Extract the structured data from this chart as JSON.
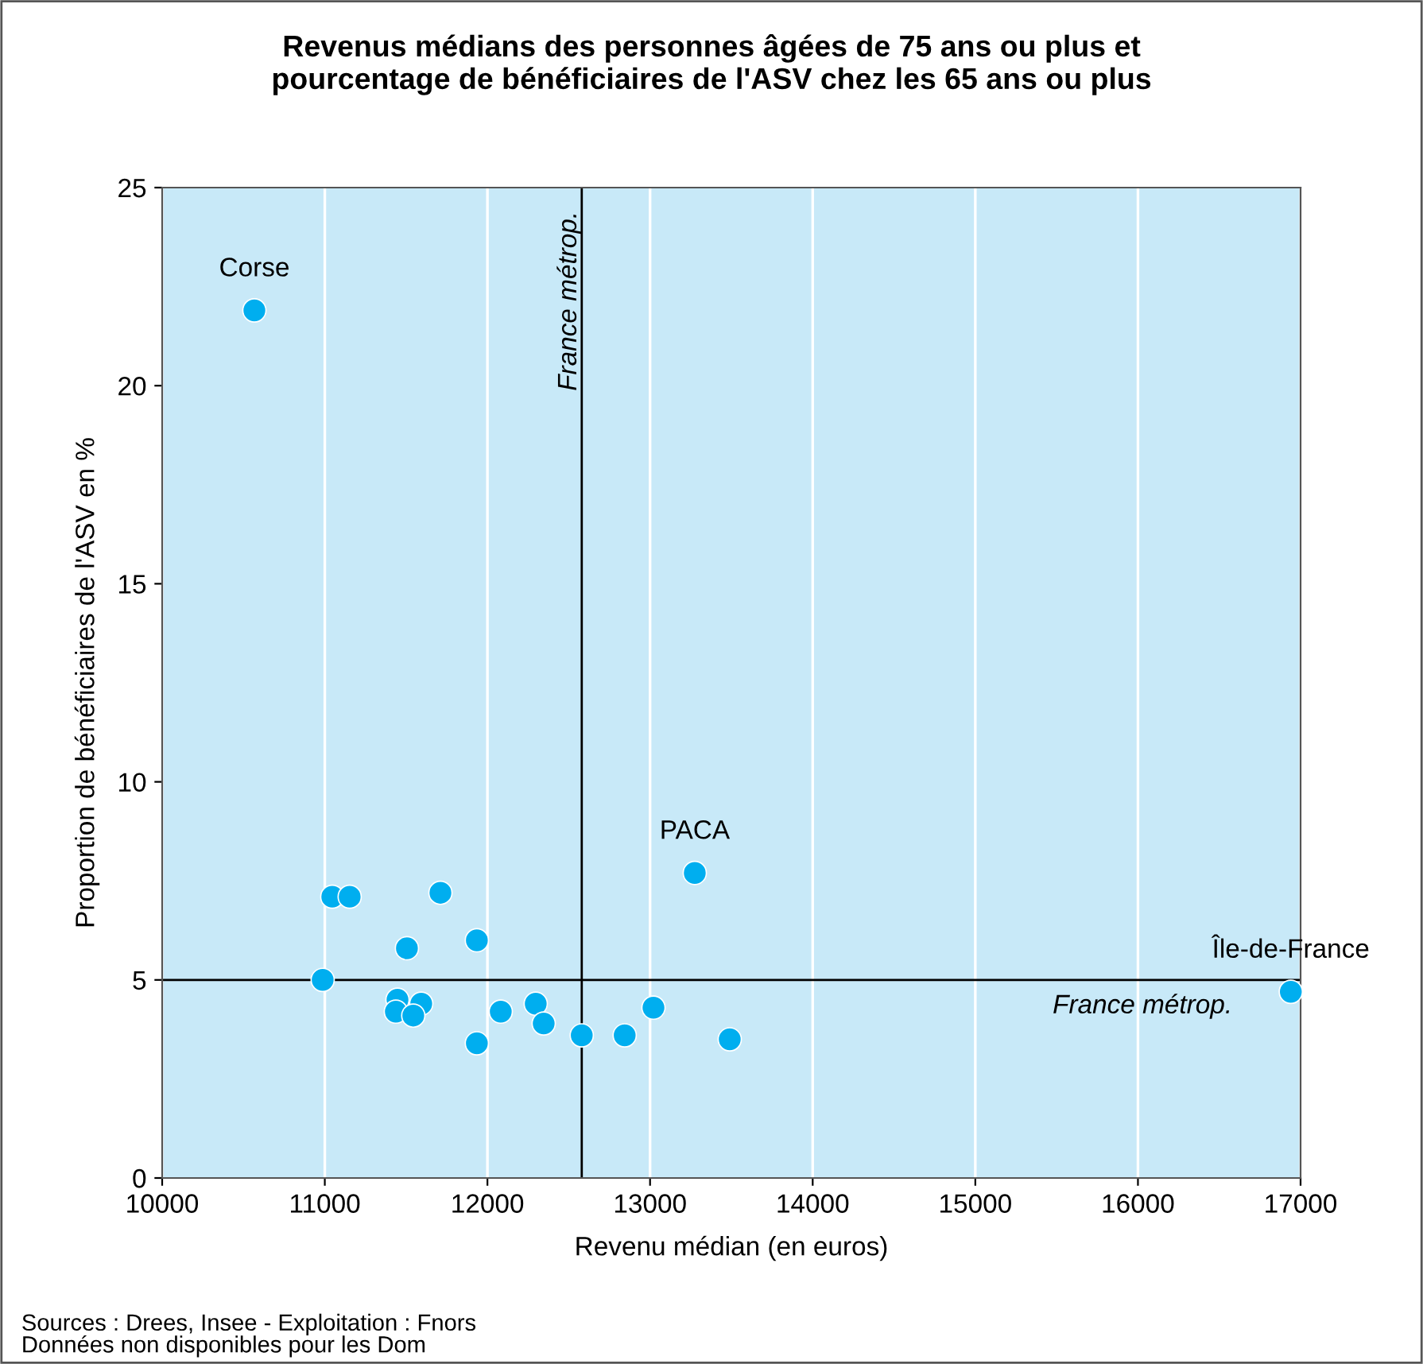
{
  "chart_data": {
    "type": "scatter",
    "title": "Revenus médians des personnes âgées de 75 ans ou plus et\npourcentage de bénéficiaires de l'ASV chez les 65 ans ou plus",
    "xlabel": "Revenu médian (en euros)",
    "ylabel": "Proportion de bénéficiaires de l'ASV en %",
    "x": [
      10567,
      10987,
      11046,
      11153,
      11711,
      11505,
      11935,
      11447,
      11437,
      11593,
      11544,
      12082,
      12297,
      12346,
      11935,
      12551,
      12580,
      12844,
      13021,
      13490,
      13275,
      16940
    ],
    "series": [
      {
        "color": "#00aeef",
        "values": [
          21.9,
          5.0,
          7.1,
          7.1,
          7.2,
          5.8,
          6.0,
          4.5,
          4.2,
          4.4,
          4.1,
          4.2,
          4.4,
          3.9,
          3.4,
          null,
          3.6,
          3.6,
          4.3,
          3.5,
          7.7,
          4.7
        ]
      }
    ],
    "xlim": [
      10000,
      17000
    ],
    "xticks": [
      10000,
      11000,
      12000,
      13000,
      14000,
      15000,
      16000,
      17000
    ],
    "ylim": [
      0,
      25
    ],
    "yticks": [
      0,
      5,
      10,
      15,
      20,
      25
    ],
    "grid": "x",
    "marker": "circle",
    "ref_lines": [
      {
        "axis": "x",
        "value": 12580,
        "label": "France métrop.",
        "color": "#000000"
      },
      {
        "axis": "y",
        "value": 5.0,
        "label": "France métrop.",
        "color": "#000000"
      }
    ],
    "annotations": [
      {
        "text": "Corse",
        "x": 10567,
        "y": 21.9
      },
      {
        "text": "PACA",
        "x": 13275,
        "y": 7.7
      },
      {
        "text": "Île-de-France",
        "x": 16940,
        "y": 4.7
      },
      "Sources : Drees, Insee - Exploitation : Fnors\nDonnées non disponibles pour les Dom"
    ]
  }
}
